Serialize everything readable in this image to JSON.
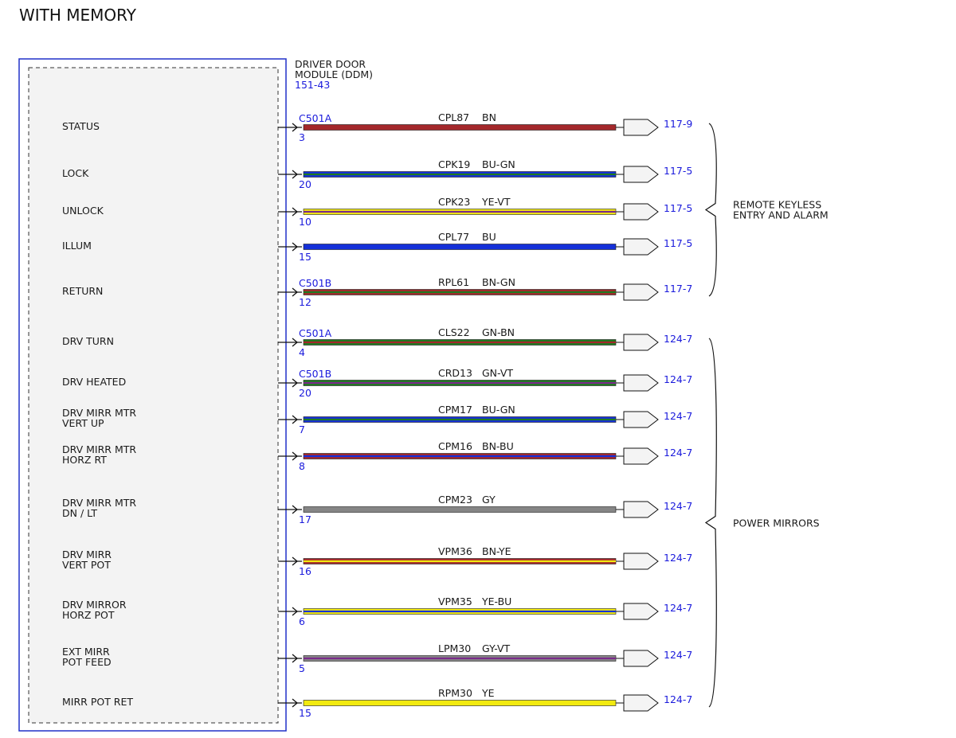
{
  "title": "WITH MEMORY",
  "module": {
    "name_lines": [
      "DRIVER DOOR",
      "MODULE (DDM)"
    ],
    "ref": "151-43"
  },
  "colors": {
    "BN": "#a4282b",
    "BU": "#1530d8",
    "GN": "#1f7a1f",
    "YE": "#f2ea10",
    "VT": "#7a2a8a",
    "GY": "#858585",
    "reference_blue": "#1a1adc",
    "module_border": "#2030c8"
  },
  "signals": [
    {
      "label": [
        "STATUS"
      ],
      "connector": "C501A",
      "pin": "3",
      "circuit": "CPL87",
      "wire_color": "BN",
      "ref": "117-9"
    },
    {
      "label": [
        "LOCK"
      ],
      "connector": "",
      "pin": "20",
      "circuit": "CPK19",
      "wire_color": "BU-GN",
      "ref": "117-5"
    },
    {
      "label": [
        "UNLOCK"
      ],
      "connector": "",
      "pin": "10",
      "circuit": "CPK23",
      "wire_color": "YE-VT",
      "ref": "117-5"
    },
    {
      "label": [
        "ILLUM"
      ],
      "connector": "",
      "pin": "15",
      "circuit": "CPL77",
      "wire_color": "BU",
      "ref": "117-5"
    },
    {
      "label": [
        "RETURN"
      ],
      "connector": "C501B",
      "pin": "12",
      "circuit": "RPL61",
      "wire_color": "BN-GN",
      "ref": "117-7"
    },
    {
      "label": [
        "DRV TURN"
      ],
      "connector": "C501A",
      "pin": "4",
      "circuit": "CLS22",
      "wire_color": "GN-BN",
      "ref": "124-7"
    },
    {
      "label": [
        "DRV HEATED"
      ],
      "connector": "C501B",
      "pin": "20",
      "circuit": "CRD13",
      "wire_color": "GN-VT",
      "ref": "124-7"
    },
    {
      "label": [
        "DRV MIRR MTR",
        "VERT UP"
      ],
      "connector": "",
      "pin": "7",
      "circuit": "CPM17",
      "wire_color": "BU-GN",
      "ref": "124-7"
    },
    {
      "label": [
        "DRV MIRR MTR",
        "HORZ RT"
      ],
      "connector": "",
      "pin": "8",
      "circuit": "CPM16",
      "wire_color": "BN-BU",
      "ref": "124-7"
    },
    {
      "label": [
        "DRV MIRR MTR",
        "DN / LT"
      ],
      "connector": "",
      "pin": "17",
      "circuit": "CPM23",
      "wire_color": "GY",
      "ref": "124-7"
    },
    {
      "label": [
        "DRV MIRR",
        "VERT POT"
      ],
      "connector": "",
      "pin": "16",
      "circuit": "VPM36",
      "wire_color": "BN-YE",
      "ref": "124-7"
    },
    {
      "label": [
        "DRV MIRROR",
        "HORZ POT"
      ],
      "connector": "",
      "pin": "6",
      "circuit": "VPM35",
      "wire_color": "YE-BU",
      "ref": "124-7"
    },
    {
      "label": [
        "EXT MIRR",
        "POT FEED"
      ],
      "connector": "",
      "pin": "5",
      "circuit": "LPM30",
      "wire_color": "GY-VT",
      "ref": "124-7"
    },
    {
      "label": [
        "MIRR POT RET"
      ],
      "connector": "",
      "pin": "15",
      "circuit": "RPM30",
      "wire_color": "YE",
      "ref": "124-7"
    }
  ],
  "groups": [
    {
      "label": [
        "REMOTE KEYLESS",
        "ENTRY AND ALARM"
      ],
      "first": 0,
      "last": 4
    },
    {
      "label": [
        "POWER MIRRORS"
      ],
      "first": 5,
      "last": 13
    }
  ]
}
